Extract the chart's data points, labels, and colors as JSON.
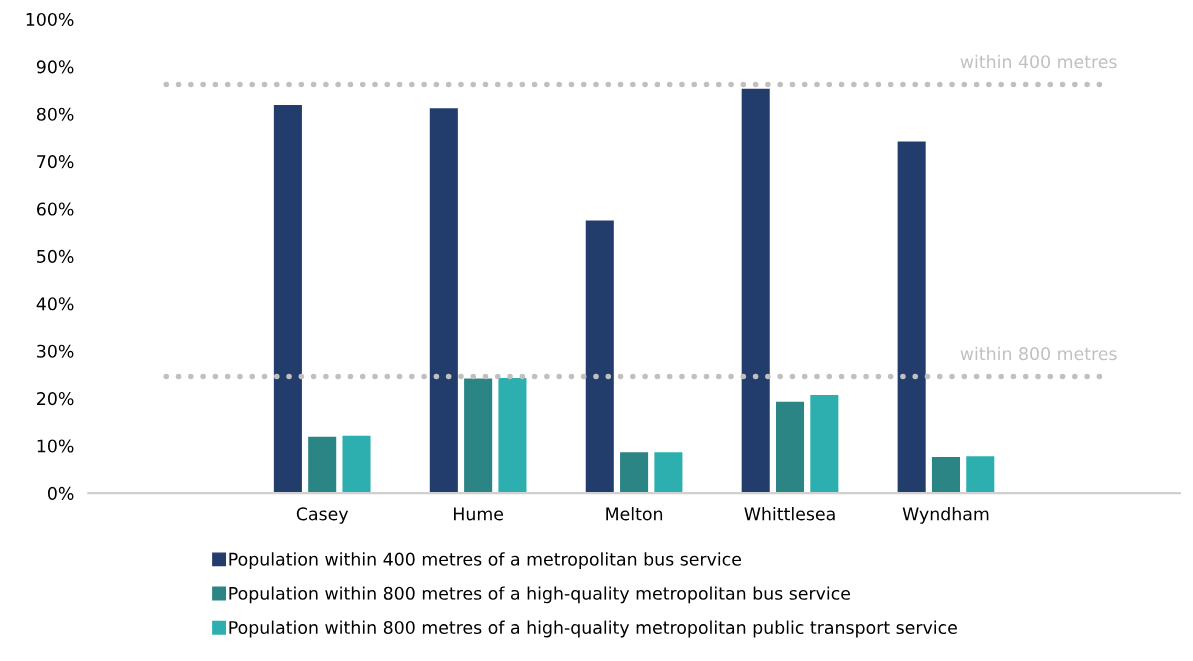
{
  "chart_data": {
    "type": "bar",
    "categories": [
      null,
      "Casey",
      "Hume",
      "Melton",
      "Whittlesea",
      "Wyndham",
      null
    ],
    "series": [
      {
        "name": "Population within 400 metres of a metropolitan bus service",
        "color": "#223d6b",
        "values": [
          null,
          81.9,
          81.2,
          57.5,
          85.3,
          74.2,
          null
        ]
      },
      {
        "name": "Population within 800 metres of a high-quality metropolitan bus service",
        "color": "#2b8585",
        "values": [
          null,
          11.9,
          24.2,
          8.6,
          19.3,
          7.6,
          null
        ]
      },
      {
        "name": "Population within 800 metres of a high-quality metropolitan public transport service",
        "color": "#2eafaf",
        "values": [
          null,
          12.1,
          24.3,
          8.6,
          20.7,
          7.8,
          null
        ]
      }
    ],
    "ylim": [
      0,
      100
    ],
    "yticks": [
      {
        "value": 0,
        "label": "0%"
      },
      {
        "value": 10,
        "label": "10%"
      },
      {
        "value": 20,
        "label": "20%"
      },
      {
        "value": 30,
        "label": "30%"
      },
      {
        "value": 40,
        "label": "40%"
      },
      {
        "value": 50,
        "label": "50%"
      },
      {
        "value": 60,
        "label": "60%"
      },
      {
        "value": 70,
        "label": "70%"
      },
      {
        "value": 80,
        "label": "80%"
      },
      {
        "value": 90,
        "label": "90%"
      },
      {
        "value": 100,
        "label": "100%"
      }
    ],
    "ref_lines": [
      {
        "axis": "y",
        "value": 86.2,
        "label": "within 400 metres",
        "color": "#c0c0c0",
        "line_style": "dotted"
      },
      {
        "axis": "y",
        "value": 24.6,
        "label": "within 800 metres",
        "color": "#c0c0c0",
        "line_style": "dotted"
      }
    ],
    "grid": false,
    "legend": "bottom"
  }
}
